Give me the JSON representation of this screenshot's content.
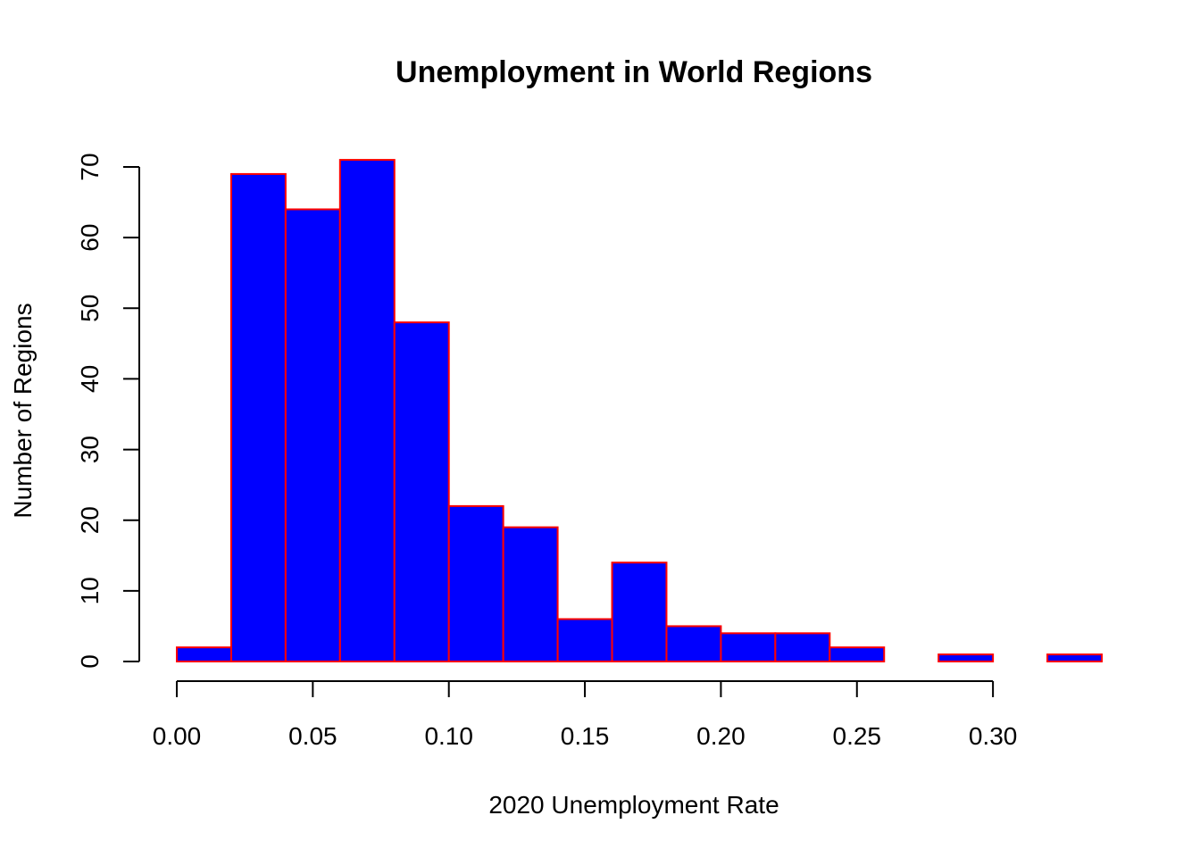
{
  "chart_data": {
    "type": "bar",
    "title": "Unemployment in World Regions",
    "xlabel": "2020 Unemployment Rate",
    "ylabel": "Number of Regions",
    "bin_edges": [
      0.0,
      0.02,
      0.04,
      0.06,
      0.08,
      0.1,
      0.12,
      0.14,
      0.16,
      0.18,
      0.2,
      0.22,
      0.24,
      0.26,
      0.28,
      0.3,
      0.32,
      0.34
    ],
    "values": [
      2,
      69,
      64,
      71,
      48,
      22,
      19,
      6,
      14,
      5,
      4,
      4,
      2,
      0,
      1,
      0,
      1
    ],
    "xlim": [
      0.0,
      0.34
    ],
    "ylim": [
      0,
      70
    ],
    "x_ticks": [
      "0.00",
      "0.05",
      "0.10",
      "0.15",
      "0.20",
      "0.25",
      "0.30"
    ],
    "y_ticks": [
      "0",
      "10",
      "20",
      "30",
      "40",
      "50",
      "60",
      "70"
    ],
    "grid": false,
    "legend": "none",
    "bar_fill": "#0000ff",
    "bar_border": "#ff0000"
  }
}
